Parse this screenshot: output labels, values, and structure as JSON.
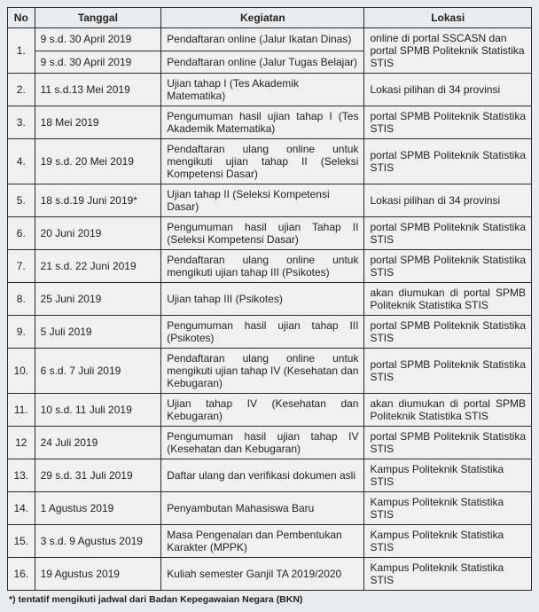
{
  "headers": {
    "no": "No",
    "tanggal": "Tanggal",
    "kegiatan": "Kegiatan",
    "lokasi": "Lokasi"
  },
  "rows": [
    {
      "no": "1.",
      "rowspan_no": 2,
      "rowspan_lok": 2,
      "tanggal": "9 s.d. 30 April 2019",
      "kegiatan": "Pendaftaran online (Jalur Ikatan Dinas)",
      "lokasi": "online di portal SSCASN dan portal SPMB Politeknik Statistika STIS"
    },
    {
      "tanggal": "9 s.d. 30 April 2019",
      "kegiatan": "Pendaftaran online (Jalur Tugas Belajar)"
    },
    {
      "no": "2.",
      "tanggal": "11 s.d.13 Mei 2019",
      "kegiatan": "Ujian tahap I (Tes Akademik Matematika)",
      "lokasi": "Lokasi pilihan di 34 provinsi"
    },
    {
      "no": "3.",
      "tanggal": "18 Mei 2019",
      "kegiatan": "Pengumuman hasil ujian tahap I (Tes Akademik Matematika)",
      "lokasi": "portal SPMB Politeknik Statistika STIS",
      "justify": true
    },
    {
      "no": "4.",
      "tanggal": "19 s.d. 20 Mei 2019",
      "kegiatan": "Pendaftaran ulang online untuk mengikuti ujian tahap II (Seleksi Kompetensi Dasar)",
      "lokasi": "portal SPMB Politeknik Statistika STIS",
      "justify": true
    },
    {
      "no": "5.",
      "tanggal": "18 s.d.19 Juni 2019*",
      "kegiatan": "Ujian tahap II (Seleksi Kompetensi Dasar)",
      "lokasi": "Lokasi pilihan di 34 provinsi"
    },
    {
      "no": "6.",
      "tanggal": "20 Juni 2019",
      "kegiatan": "Pengumuman hasil ujian Tahap II (Seleksi Kompetensi Dasar)",
      "lokasi": "portal SPMB Politeknik Statistika STIS",
      "justify": true
    },
    {
      "no": "7.",
      "tanggal": "21 s.d. 22 Juni 2019",
      "kegiatan": "Pendaftaran ulang online untuk mengikuti ujian tahap III (Psikotes)",
      "lokasi": "portal SPMB Politeknik Statistika STIS",
      "justify": true
    },
    {
      "no": "8.",
      "tanggal": "25 Juni 2019",
      "kegiatan": "Ujian tahap III (Psikotes)",
      "lokasi": "akan diumukan di portal SPMB Politeknik Statistika STIS",
      "justify": true
    },
    {
      "no": "9.",
      "tanggal": " 5 Juli 2019",
      "kegiatan": "Pengumuman hasil ujian tahap III (Psikotes)",
      "lokasi": "portal SPMB Politeknik Statistika STIS",
      "justify": true
    },
    {
      "no": "10.",
      "tanggal": "6  s.d. 7 Juli 2019",
      "kegiatan": "Pendaftaran ulang online untuk mengikuti ujian tahap IV (Kesehatan dan Kebugaran)",
      "lokasi": "portal SPMB Politeknik Statistika STIS",
      "justify": true
    },
    {
      "no": "11.",
      "tanggal": "10 s.d. 11 Juli 2019",
      "kegiatan": "Ujian tahap IV (Kesehatan dan Kebugaran)",
      "lokasi": "akan diumukan di portal SPMB Politeknik Statistika STIS",
      "justify": true
    },
    {
      "no": "12",
      "tanggal": "24 Juli 2019",
      "kegiatan": "Pengumuman hasil ujian tahap IV (Kesehatan dan Kebugaran)",
      "lokasi": "portal SPMB Politeknik Statistika STIS",
      "justify": true
    },
    {
      "no": "13.",
      "tanggal": "29 s.d. 31 Juli 2019",
      "kegiatan": "Daftar ulang dan verifikasi dokumen asli",
      "lokasi": "Kampus Politeknik Statistika STIS"
    },
    {
      "no": "14.",
      "tanggal": "1 Agustus 2019",
      "kegiatan": "Penyambutan Mahasiswa Baru",
      "lokasi": "Kampus Politeknik Statistika STIS"
    },
    {
      "no": "15.",
      "tanggal": "3 s.d. 9 Agustus 2019",
      "kegiatan": "Masa Pengenalan dan Pembentukan Karakter (MPPK)",
      "lokasi": "Kampus Politeknik Statistika STIS"
    },
    {
      "no": "16.",
      "tanggal": "19 Agustus 2019",
      "kegiatan": "Kuliah semester Ganjil TA 2019/2020",
      "lokasi": "Kampus Politeknik Statistika STIS"
    }
  ],
  "footnote": "*) tentatif mengikuti jadwal dari Badan Kepegawaian Negara (BKN)"
}
